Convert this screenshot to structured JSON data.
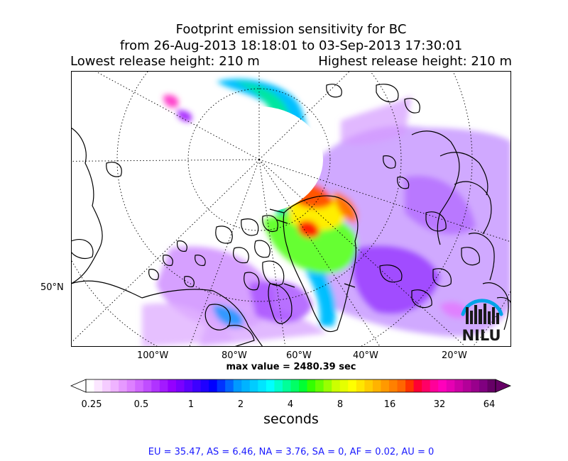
{
  "header": {
    "title": "Footprint emission sensitivity for BC",
    "period": "from 26-Aug-2013 18:18:01 to 03-Sep-2013 17:30:01",
    "lowest_release": "Lowest release height: 210 m",
    "highest_release": "Highest release height: 210 m"
  },
  "map": {
    "lat_label": "50°N",
    "lon_labels": [
      "100°W",
      "80°W",
      "60°W",
      "40°W",
      "20°W"
    ],
    "logo_text": "NILU",
    "max_value": "max value = 2480.39 sec"
  },
  "colorbar": {
    "ticks": [
      "0.25",
      "0.5",
      "1",
      "2",
      "4",
      "8",
      "16",
      "32",
      "64"
    ],
    "unit_label": "seconds",
    "colors": [
      "#ffffff",
      "#fbe6ff",
      "#f5ccff",
      "#efb3ff",
      "#e699ff",
      "#dd80ff",
      "#d066ff",
      "#c04dff",
      "#b033ff",
      "#a31aff",
      "#9400ff",
      "#7a00ff",
      "#5c00ff",
      "#3d00ff",
      "#1f00ff",
      "#0000ff",
      "#0033ff",
      "#0066ff",
      "#0099ff",
      "#00b3ff",
      "#00ccff",
      "#00e5ff",
      "#00ffff",
      "#00ffcc",
      "#00ff99",
      "#00ff66",
      "#00ff33",
      "#33ff00",
      "#66ff00",
      "#99ff00",
      "#ccff00",
      "#e5ff00",
      "#ffff00",
      "#ffe600",
      "#ffcc00",
      "#ffb300",
      "#ff9900",
      "#ff8000",
      "#ff6600",
      "#ff3300",
      "#ff0033",
      "#ff0066",
      "#ff0099",
      "#ff00bb",
      "#e600b3",
      "#cc00a6",
      "#b30099",
      "#99008c",
      "#800080",
      "#660066"
    ]
  },
  "footer": {
    "regions": "EU = 35.47,  AS = 6.46,  NA = 3.76,  SA = 0,  AF = 0.02,  AU = 0"
  }
}
